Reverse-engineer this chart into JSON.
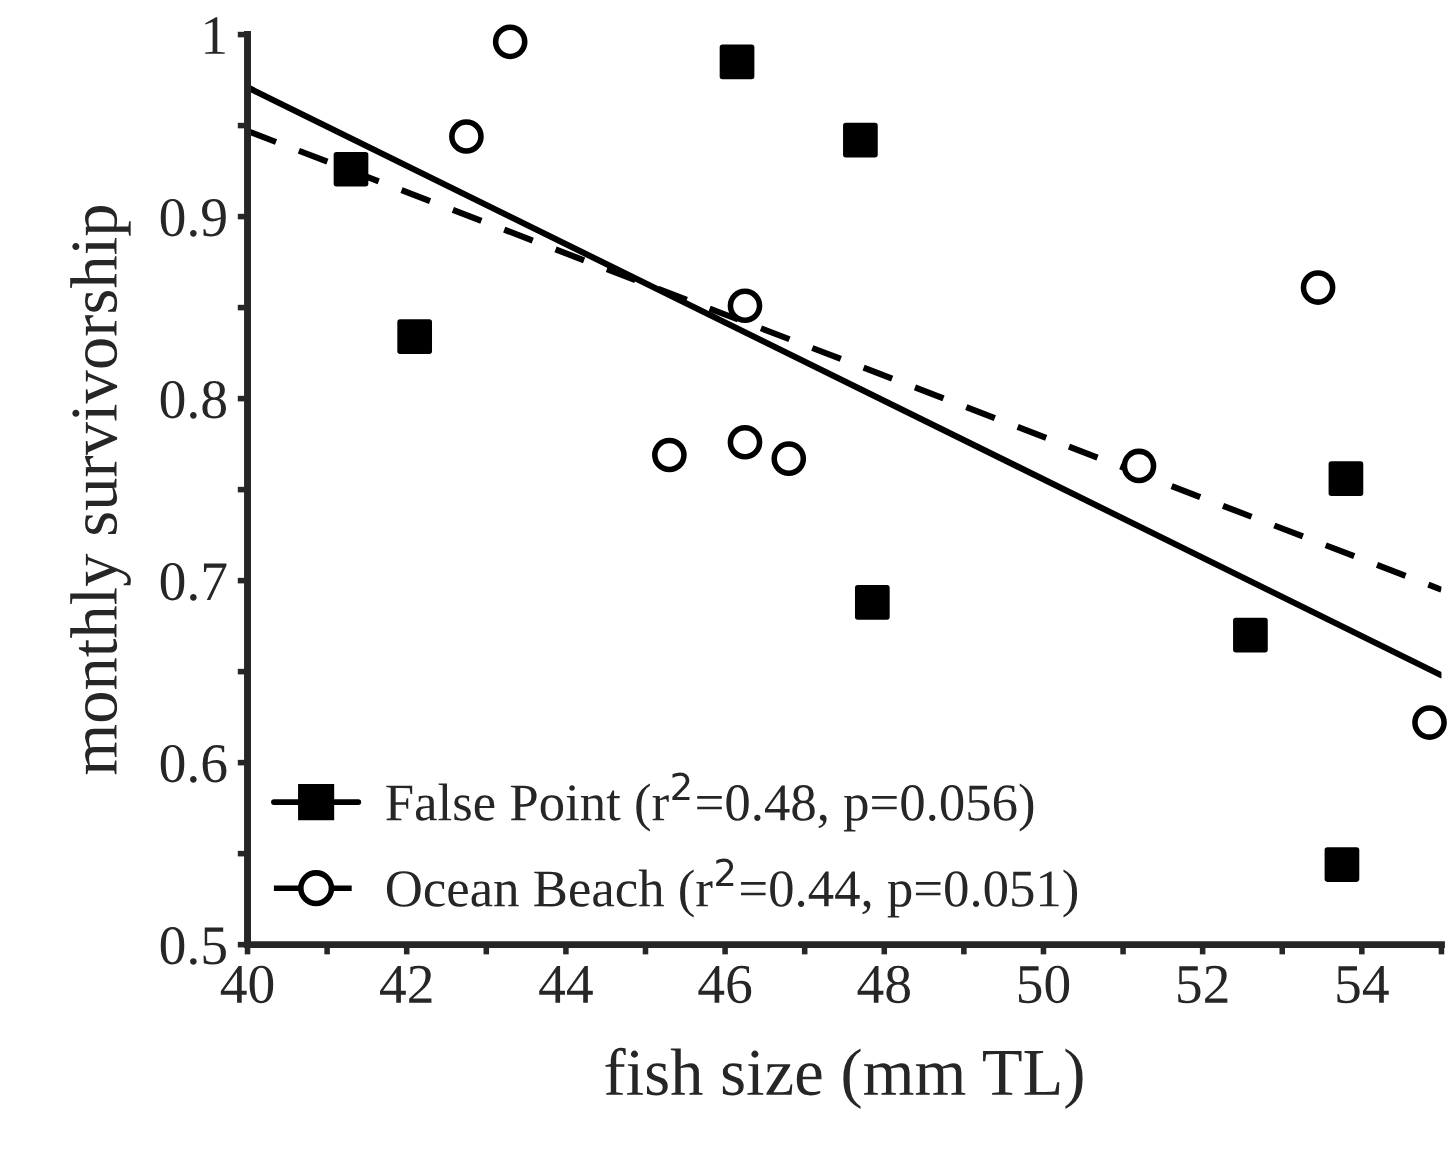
{
  "chart_data": {
    "type": "scatter",
    "xlabel": "fish size (mm TL)",
    "ylabel": "monthly survivorship",
    "xlim": [
      40,
      55
    ],
    "ylim": [
      0.5,
      1
    ],
    "xticks": [
      40,
      {
        "value": 41,
        "label": null
      },
      42,
      {
        "value": 43,
        "label": null
      },
      44,
      {
        "value": 45,
        "label": null
      },
      46,
      {
        "value": 47,
        "label": null
      },
      48,
      {
        "value": 49,
        "label": null
      },
      50,
      {
        "value": 51,
        "label": null
      },
      52,
      {
        "value": 53,
        "label": null
      },
      54,
      {
        "value": 55,
        "label": null
      }
    ],
    "yticks": [
      0.5,
      {
        "value": 0.55,
        "label": null
      },
      0.6,
      {
        "value": 0.65,
        "label": null
      },
      0.7,
      {
        "value": 0.75,
        "label": null
      },
      0.8,
      {
        "value": 0.85,
        "label": null
      },
      0.9,
      {
        "value": 0.95,
        "label": null
      },
      {
        "value": 1,
        "label": "1"
      }
    ],
    "grid": false,
    "legend": "bottom left",
    "series": [
      {
        "name": "False Point (r$^{2}$=0.48, p=0.056)",
        "marker": "square",
        "color": "#000000",
        "x": [
          41.3,
          42.1,
          46.15,
          47.7,
          47.85,
          52.6,
          53.8,
          53.75
        ],
        "values": [
          0.926,
          0.834,
          0.985,
          0.942,
          0.688,
          0.67,
          0.756,
          0.544
        ]
      },
      {
        "name": "Ocean Beach (r$^{2}$=0.44, p=0.051)",
        "marker": "circle",
        "color": "#000000",
        "x": [
          43.3,
          42.75,
          46.25,
          45.3,
          46.25,
          46.8,
          53.45,
          51.2,
          54.85
        ],
        "values": [
          0.996,
          0.944,
          0.851,
          0.769,
          0.776,
          0.767,
          0.861,
          0.763,
          0.622
        ]
      },
      {
        "type": "line",
        "line_style": "solid",
        "color": "#000000",
        "x": [
          40,
          55
        ],
        "values": [
          0.971,
          0.648
        ]
      },
      {
        "type": "line",
        "line_style": "dashed",
        "color": "#000000",
        "x": [
          40,
          55
        ],
        "values": [
          0.947,
          0.695
        ]
      }
    ]
  }
}
